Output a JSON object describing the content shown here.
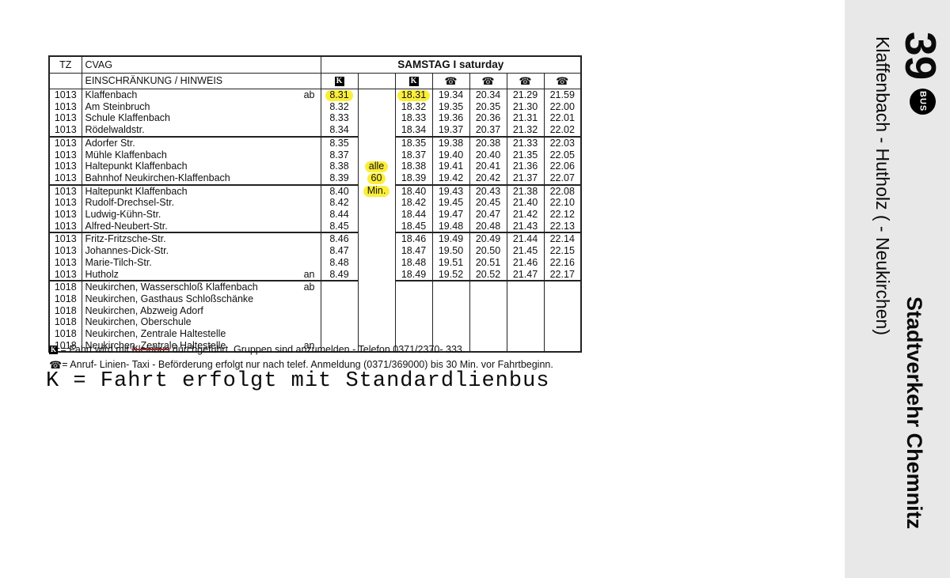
{
  "colors": {
    "highlight_yellow": "#fbee3a",
    "sidebar_background": "#e8e8e8",
    "strikethrough_red": "#a03030",
    "ink": "#111111"
  },
  "sidebar": {
    "line_number": "39",
    "bus_badge_label": "BUS",
    "route": "Klaffenbach - Hutholz ( - Neukirchen)",
    "operator": "Stadtverkehr Chemnitz"
  },
  "table": {
    "header": {
      "tz": "TZ",
      "cvag": "CVAG",
      "day": "SAMSTAG I saturday",
      "restriction": "EINSCHRÄNKUNG / HINWEIS"
    },
    "icons": {
      "k": "K",
      "phone": "☎"
    },
    "column_icons": [
      "k",
      "",
      "k",
      "phone",
      "phone",
      "phone",
      "phone"
    ],
    "rows": [
      {
        "tz": "1013",
        "stop": "Klaffenbach",
        "mark": "ab",
        "times": [
          "8.31",
          "",
          "18.31",
          "19.34",
          "20.34",
          "21.29",
          "21.59"
        ],
        "hl": [
          0,
          2
        ]
      },
      {
        "tz": "1013",
        "stop": "Am Steinbruch",
        "mark": "",
        "times": [
          "8.32",
          "",
          "18.32",
          "19.35",
          "20.35",
          "21.30",
          "22.00"
        ]
      },
      {
        "tz": "1013",
        "stop": "Schule Klaffenbach",
        "mark": "",
        "times": [
          "8.33",
          "",
          "18.33",
          "19.36",
          "20.36",
          "21.31",
          "22.01"
        ]
      },
      {
        "tz": "1013",
        "stop": "Rödelwaldstr.",
        "mark": "",
        "times": [
          "8.34",
          "",
          "18.34",
          "19.37",
          "20.37",
          "21.32",
          "22.02"
        ]
      },
      {
        "tz": "1013",
        "stop": "Adorfer Str.",
        "mark": "",
        "sep": true,
        "times": [
          "8.35",
          "",
          "18.35",
          "19.38",
          "20.38",
          "21.33",
          "22.03"
        ]
      },
      {
        "tz": "1013",
        "stop": "Mühle Klaffenbach",
        "mark": "",
        "times": [
          "8.37",
          "",
          "18.37",
          "19.40",
          "20.40",
          "21.35",
          "22.05"
        ]
      },
      {
        "tz": "1013",
        "stop": "Haltepunkt Klaffenbach",
        "mark": "",
        "times": [
          "8.38",
          "alle",
          "18.38",
          "19.41",
          "20.41",
          "21.36",
          "22.06"
        ],
        "hl": [
          1
        ]
      },
      {
        "tz": "1013",
        "stop": "Bahnhof Neukirchen-Klaffenbach",
        "mark": "",
        "times": [
          "8.39",
          "60",
          "18.39",
          "19.42",
          "20.42",
          "21.37",
          "22.07"
        ],
        "hl": [
          1
        ]
      },
      {
        "tz": "1013",
        "stop": "Haltepunkt Klaffenbach",
        "mark": "",
        "sep": true,
        "times": [
          "8.40",
          "Min.",
          "18.40",
          "19.43",
          "20.43",
          "21.38",
          "22.08"
        ],
        "hl": [
          1
        ]
      },
      {
        "tz": "1013",
        "stop": "Rudolf-Drechsel-Str.",
        "mark": "",
        "times": [
          "8.42",
          "",
          "18.42",
          "19.45",
          "20.45",
          "21.40",
          "22.10"
        ]
      },
      {
        "tz": "1013",
        "stop": "Ludwig-Kühn-Str.",
        "mark": "",
        "times": [
          "8.44",
          "",
          "18.44",
          "19.47",
          "20.47",
          "21.42",
          "22.12"
        ]
      },
      {
        "tz": "1013",
        "stop": "Alfred-Neubert-Str.",
        "mark": "",
        "times": [
          "8.45",
          "",
          "18.45",
          "19.48",
          "20.48",
          "21.43",
          "22.13"
        ]
      },
      {
        "tz": "1013",
        "stop": "Fritz-Fritzsche-Str.",
        "mark": "",
        "sep": true,
        "times": [
          "8.46",
          "",
          "18.46",
          "19.49",
          "20.49",
          "21.44",
          "22.14"
        ]
      },
      {
        "tz": "1013",
        "stop": "Johannes-Dick-Str.",
        "mark": "",
        "times": [
          "8.47",
          "",
          "18.47",
          "19.50",
          "20.50",
          "21.45",
          "22.15"
        ]
      },
      {
        "tz": "1013",
        "stop": "Marie-Tilch-Str.",
        "mark": "",
        "times": [
          "8.48",
          "",
          "18.48",
          "19.51",
          "20.51",
          "21.46",
          "22.16"
        ]
      },
      {
        "tz": "1013",
        "stop": "Hutholz",
        "mark": "an",
        "times": [
          "8.49",
          "",
          "18.49",
          "19.52",
          "20.52",
          "21.47",
          "22.17"
        ]
      },
      {
        "tz": "1018",
        "stop": "Neukirchen, Wasserschloß Klaffenbach",
        "mark": "ab",
        "sep": true,
        "times": [
          "",
          "",
          "",
          "",
          "",
          "",
          ""
        ]
      },
      {
        "tz": "1018",
        "stop": "Neukirchen, Gasthaus Schloßschänke",
        "mark": "",
        "times": [
          "",
          "",
          "",
          "",
          "",
          "",
          ""
        ]
      },
      {
        "tz": "1018",
        "stop": "Neukirchen, Abzweig Adorf",
        "mark": "",
        "times": [
          "",
          "",
          "",
          "",
          "",
          "",
          ""
        ]
      },
      {
        "tz": "1018",
        "stop": "Neukirchen, Oberschule",
        "mark": "",
        "times": [
          "",
          "",
          "",
          "",
          "",
          "",
          ""
        ]
      },
      {
        "tz": "1018",
        "stop": "Neukirchen, Zentrale Haltestelle",
        "mark": "",
        "times": [
          "",
          "",
          "",
          "",
          "",
          "",
          ""
        ]
      },
      {
        "tz": "1018",
        "stop": "Neukirchen, Zentrale Haltestelle",
        "mark": "an",
        "times": [
          "",
          "",
          "",
          "",
          "",
          "",
          ""
        ]
      }
    ]
  },
  "footnotes": {
    "k_line": {
      "icon": "K",
      "pre": "=  Fahrt wird mit ",
      "struck": "Kleinbus",
      "post": " durchgeführt. Gruppen sind anzumelden -  Telefon 0371/2370- 333."
    },
    "phone_line": {
      "icon": "☎",
      "text": "=  Anruf- Linien- Taxi -  Beförderung erfolgt nur nach telef. Anmeldung (0371/369000) bis 30 Min. vor Fahrtbeginn."
    }
  },
  "big_note": "K = Fahrt erfolgt mit Standardlienbus"
}
